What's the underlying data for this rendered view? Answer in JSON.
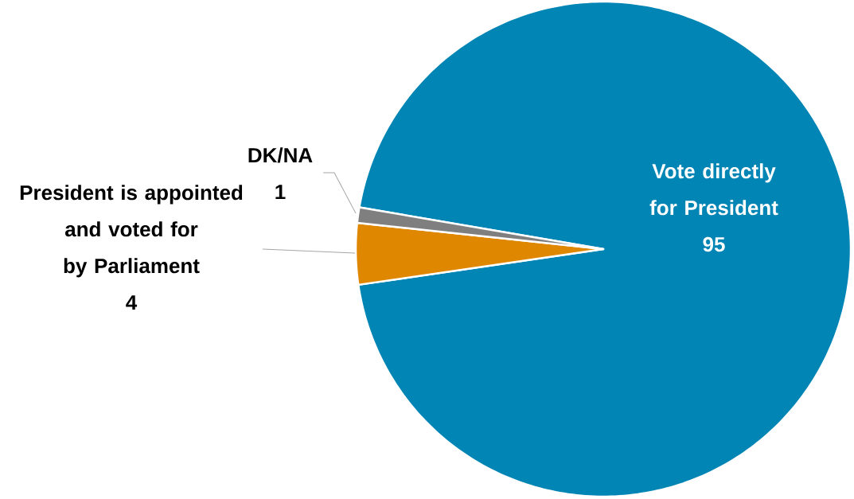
{
  "chart_data": {
    "type": "pie",
    "categories": [
      "Vote directly for President",
      "President is appointed and voted for by Parliament",
      "DK/NA"
    ],
    "values": [
      95,
      4,
      1
    ],
    "colors": [
      "#0085b5",
      "#e08700",
      "#7f7f7f"
    ],
    "data_labels": true
  }
}
